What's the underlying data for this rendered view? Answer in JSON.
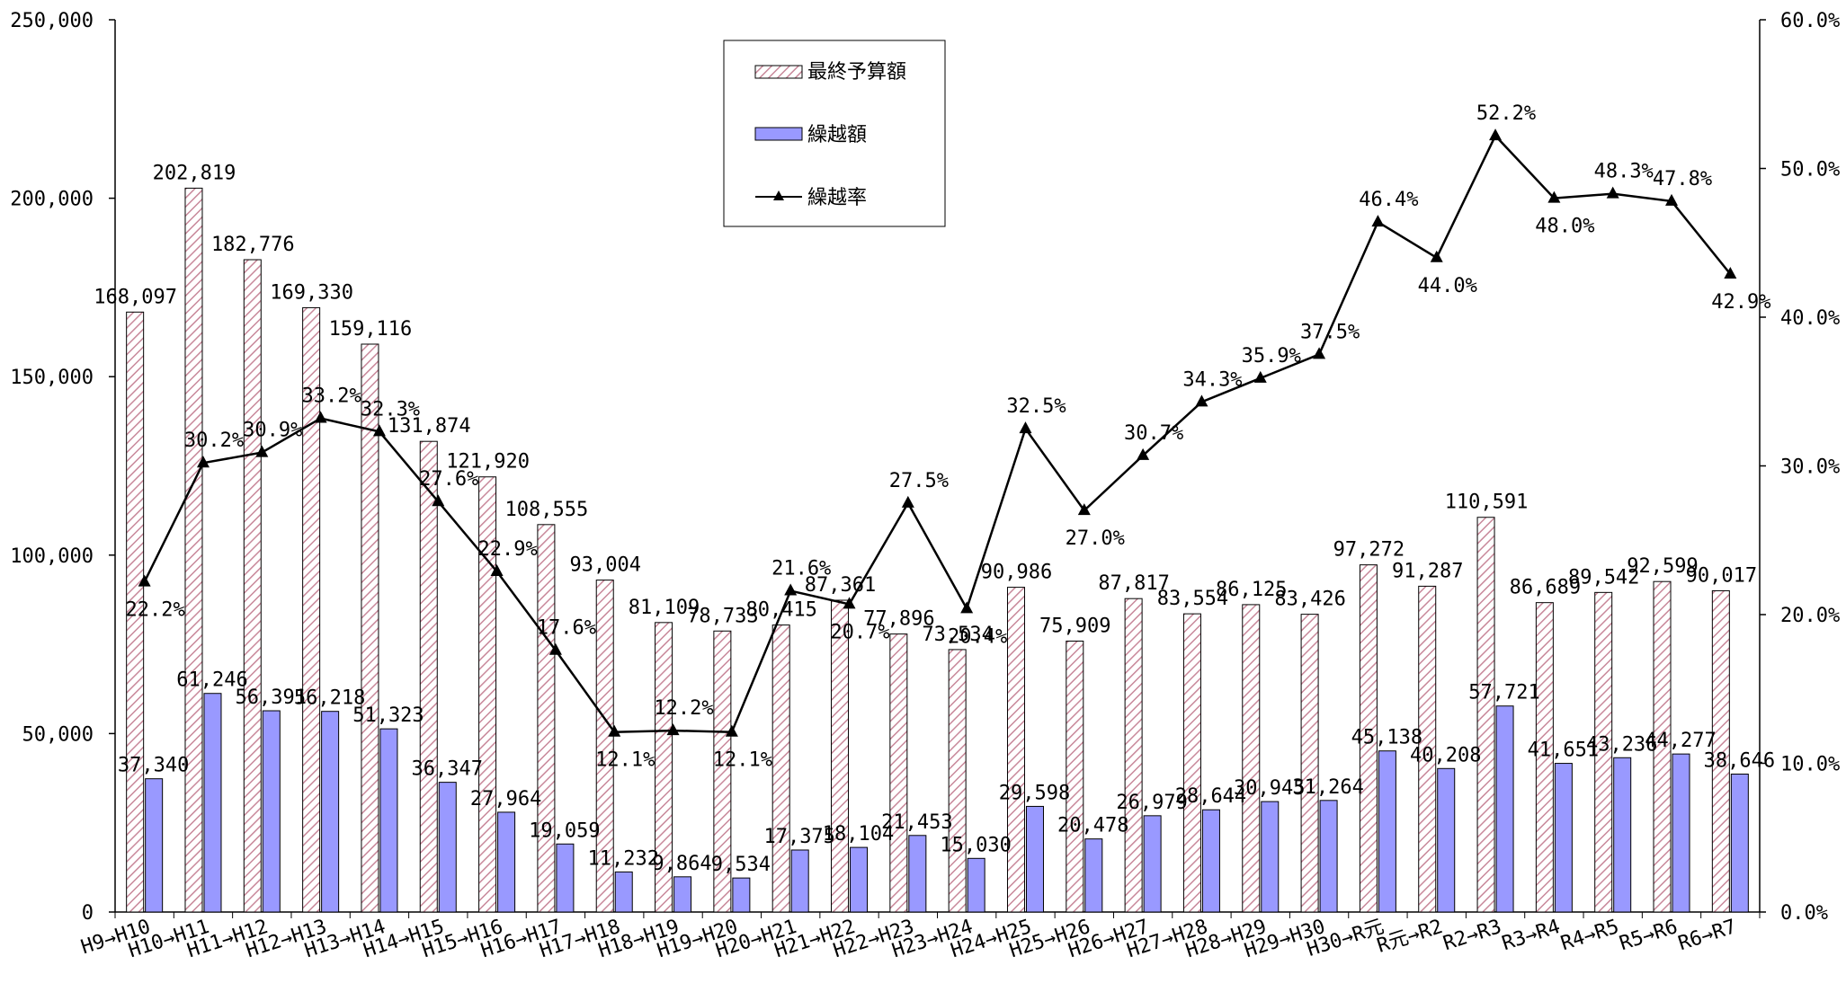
{
  "chart_data": {
    "type": "bar",
    "categories": [
      "H9→H10",
      "H10→H11",
      "H11→H12",
      "H12→H13",
      "H13→H14",
      "H14→H15",
      "H15→H16",
      "H16→H17",
      "H17→H18",
      "H18→H19",
      "H19→H20",
      "H20→H21",
      "H21→H22",
      "H22→H23",
      "H23→H24",
      "H24→H25",
      "H25→H26",
      "H26→H27",
      "H27→H28",
      "H28→H29",
      "H29→H30",
      "H30→R元",
      "R元→R2",
      "R2→R3",
      "R3→R4",
      "R4→R5",
      "R5→R6",
      "R6→R7"
    ],
    "series": [
      {
        "name": "最終予算額",
        "type": "bar",
        "axis": "left",
        "values": [
          168097,
          202819,
          182776,
          169330,
          159116,
          131874,
          121920,
          108555,
          93004,
          81109,
          78733,
          80415,
          87361,
          77896,
          73534,
          90986,
          75909,
          87817,
          83554,
          86125,
          83426,
          97272,
          91287,
          110591,
          86689,
          89542,
          92599,
          90017
        ],
        "labels": [
          "168,097",
          "202,819",
          "182,776",
          "169,330",
          "159,116",
          "131,874",
          "121,920",
          "108,555",
          "93,004",
          "81,109",
          "78,733",
          "80,415",
          "87,361",
          "77,896",
          "73,534",
          "90,986",
          "75,909",
          "87,817",
          "83,554",
          "86,125",
          "83,426",
          "97,272",
          "91,287",
          "110,591",
          "86,689",
          "89,542",
          "92,599",
          "90,017"
        ]
      },
      {
        "name": "繰越額",
        "type": "bar",
        "axis": "left",
        "values": [
          37340,
          61246,
          56391,
          56218,
          51323,
          36347,
          27964,
          19059,
          11232,
          9864,
          9534,
          17375,
          18104,
          21453,
          15030,
          29598,
          20478,
          26979,
          28644,
          30945,
          31264,
          45138,
          40208,
          57721,
          41651,
          43236,
          44277,
          38646
        ],
        "labels": [
          "37,340",
          "61,246",
          "56,391",
          "56,218",
          "51,323",
          "36,347",
          "27,964",
          "19,059",
          "11,232",
          "9,864",
          "9,534",
          "17,375",
          "18,104",
          "21,453",
          "15,030",
          "29,598",
          "20,478",
          "26,979",
          "28,644",
          "30,945",
          "31,264",
          "45,138",
          "40,208",
          "57,721",
          "41,651",
          "43,236",
          "44,277",
          "38,646"
        ]
      },
      {
        "name": "繰越率",
        "type": "line",
        "axis": "right",
        "values": [
          22.2,
          30.2,
          30.9,
          33.2,
          32.3,
          27.6,
          22.9,
          17.6,
          12.1,
          12.2,
          12.1,
          21.6,
          20.7,
          27.5,
          20.4,
          32.5,
          27.0,
          30.7,
          34.3,
          35.9,
          37.5,
          46.4,
          44.0,
          52.2,
          48.0,
          48.3,
          47.8,
          42.9
        ],
        "labels": [
          "22.2%",
          "30.2%",
          "30.9%",
          "33.2%",
          "32.3%",
          "27.6%",
          "22.9%",
          "17.6%",
          "12.1%",
          "12.2%",
          "12.1%",
          "21.6%",
          "20.7%",
          "27.5%",
          "20.4%",
          "32.5%",
          "27.0%",
          "30.7%",
          "34.3%",
          "35.9%",
          "37.5%",
          "46.4%",
          "44.0%",
          "52.2%",
          "48.0%",
          "48.3%",
          "47.8%",
          "42.9%"
        ]
      }
    ],
    "left_axis": {
      "ylim": [
        0,
        250000
      ],
      "ticks": [
        0,
        50000,
        100000,
        150000,
        200000,
        250000
      ],
      "tick_labels": [
        "0",
        "50,000",
        "100,000",
        "150,000",
        "200,000",
        "250,000"
      ]
    },
    "right_axis": {
      "ylim": [
        0,
        60
      ],
      "ticks": [
        0,
        10,
        20,
        30,
        40,
        50,
        60
      ],
      "tick_labels": [
        "0.0%",
        "10.0%",
        "20.0%",
        "30.0%",
        "40.0%",
        "50.0%",
        "60.0%"
      ]
    },
    "grid": false,
    "legend": {
      "placement": "top-center",
      "items": [
        "最終予算額",
        "繰越額",
        "繰越率"
      ]
    },
    "colors": {
      "budget_fill": "#ffffff",
      "budget_hatch": "#c8889a",
      "carryover_fill": "#9999ff",
      "line": "#000000"
    }
  }
}
